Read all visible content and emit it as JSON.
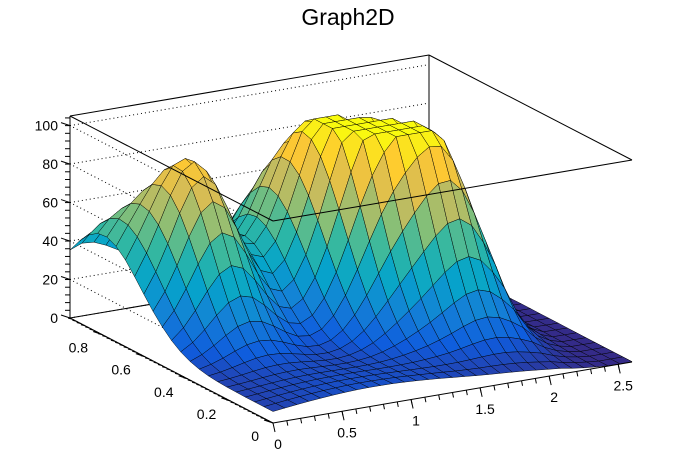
{
  "chart_data": {
    "type": "surface",
    "title": "Graph2D",
    "xlabel": "",
    "ylabel": "",
    "zlabel": "",
    "xlim": [
      0,
      2.6
    ],
    "ylim": [
      0,
      0.95
    ],
    "zlim": [
      0,
      105
    ],
    "x_ticks": [
      "0",
      "0.5",
      "1",
      "1.5",
      "2",
      "2.5"
    ],
    "y_ticks": [
      "0",
      "0.2",
      "0.4",
      "0.6",
      "0.8"
    ],
    "z_ticks": [
      "0",
      "20",
      "40",
      "60",
      "80",
      "100"
    ],
    "grid": true,
    "colormap": [
      "#352a87",
      "#0f5cdd",
      "#1481d6",
      "#06a4ca",
      "#2eb7a4",
      "#87bf77",
      "#d1bb59",
      "#fec832",
      "#f9fb0e"
    ],
    "peaks": [
      {
        "x": 0.05,
        "y": 0.82,
        "z": 40
      },
      {
        "x": 0.45,
        "y": 0.65,
        "z": 85
      },
      {
        "x": 1.45,
        "y": 0.55,
        "z": 90
      },
      {
        "x": 1.85,
        "y": 0.45,
        "z": 85
      },
      {
        "x": 1.15,
        "y": 0.72,
        "z": 60
      }
    ]
  }
}
